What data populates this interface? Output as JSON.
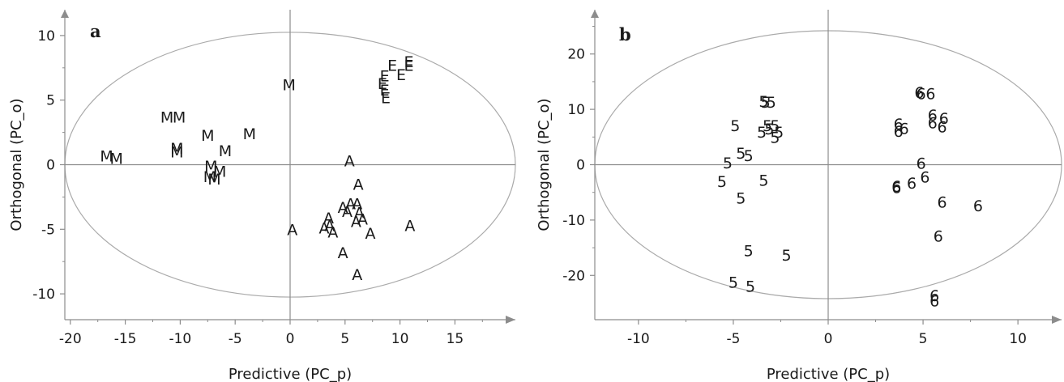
{
  "chart_data": [
    {
      "type": "scatter",
      "panel_label": "a",
      "xlabel": "Predictive (PC_p)",
      "ylabel": "Orthogonal (PC_o)",
      "xlim": [
        -20.5,
        20.5
      ],
      "ylim": [
        -12,
        12
      ],
      "xticks": [
        -20,
        -15,
        -10,
        -5,
        0,
        5,
        10,
        15
      ],
      "yticks": [
        -10,
        -5,
        0,
        5,
        10
      ],
      "grid": false,
      "zero_lines": true,
      "confidence_ellipse": {
        "rx": 20.5,
        "ry": 10.25
      },
      "colors": {
        "axis": "#8c8c8c",
        "ellipse": "#aaaaaa",
        "marks": "#1a1a1a"
      },
      "points": [
        {
          "label": "M",
          "x": -0.1,
          "y": 6.2
        },
        {
          "label": "M",
          "x": -11.2,
          "y": 3.7
        },
        {
          "label": "M",
          "x": -10.1,
          "y": 3.7
        },
        {
          "label": "M",
          "x": -7.5,
          "y": 2.3
        },
        {
          "label": "M",
          "x": -3.7,
          "y": 2.4
        },
        {
          "label": "M",
          "x": -10.3,
          "y": 1.3
        },
        {
          "label": "M",
          "x": -10.3,
          "y": 1.0
        },
        {
          "label": "M",
          "x": -5.9,
          "y": 1.1
        },
        {
          "label": "M",
          "x": -16.7,
          "y": 0.7
        },
        {
          "label": "M",
          "x": -15.8,
          "y": 0.5
        },
        {
          "label": "M",
          "x": -7.2,
          "y": -0.1
        },
        {
          "label": "M",
          "x": -6.4,
          "y": -0.5
        },
        {
          "label": "M",
          "x": -7.3,
          "y": -0.9
        },
        {
          "label": "M",
          "x": -6.9,
          "y": -1.1
        },
        {
          "label": "E",
          "x": 10.8,
          "y": 8.0
        },
        {
          "label": "E",
          "x": 10.8,
          "y": 7.7
        },
        {
          "label": "E",
          "x": 9.3,
          "y": 7.7
        },
        {
          "label": "E",
          "x": 10.1,
          "y": 7.0
        },
        {
          "label": "E",
          "x": 8.6,
          "y": 6.9
        },
        {
          "label": "E",
          "x": 8.4,
          "y": 6.3
        },
        {
          "label": "E",
          "x": 8.6,
          "y": 5.8
        },
        {
          "label": "E",
          "x": 8.7,
          "y": 5.2
        },
        {
          "label": "A",
          "x": 5.4,
          "y": 0.3
        },
        {
          "label": "A",
          "x": 6.2,
          "y": -1.5
        },
        {
          "label": "A",
          "x": 5.5,
          "y": -3.0
        },
        {
          "label": "A",
          "x": 6.1,
          "y": -3.0
        },
        {
          "label": "A",
          "x": 4.8,
          "y": -3.3
        },
        {
          "label": "A",
          "x": 5.2,
          "y": -3.6
        },
        {
          "label": "A",
          "x": 6.3,
          "y": -3.7
        },
        {
          "label": "A",
          "x": 3.5,
          "y": -4.1
        },
        {
          "label": "A",
          "x": 6.6,
          "y": -4.2
        },
        {
          "label": "A",
          "x": 6.0,
          "y": -4.4
        },
        {
          "label": "A",
          "x": 3.6,
          "y": -4.7
        },
        {
          "label": "A",
          "x": 10.9,
          "y": -4.7
        },
        {
          "label": "A",
          "x": 3.1,
          "y": -4.9
        },
        {
          "label": "A",
          "x": 0.2,
          "y": -5.0
        },
        {
          "label": "A",
          "x": 3.9,
          "y": -5.2
        },
        {
          "label": "A",
          "x": 7.3,
          "y": -5.3
        },
        {
          "label": "A",
          "x": 4.8,
          "y": -6.8
        },
        {
          "label": "A",
          "x": 6.1,
          "y": -8.5
        }
      ]
    },
    {
      "type": "scatter",
      "panel_label": "b",
      "xlabel": "Predictive (PC_p)",
      "ylabel": "Orthogonal (PC_o)",
      "xlim": [
        -12.3,
        12.3
      ],
      "ylim": [
        -28,
        28
      ],
      "xticks": [
        -10,
        -5,
        0,
        5,
        10
      ],
      "yticks": [
        -20,
        -10,
        0,
        10,
        20
      ],
      "grid": false,
      "zero_lines": true,
      "confidence_ellipse": {
        "rx": 12.3,
        "ry": 24.2
      },
      "colors": {
        "axis": "#8c8c8c",
        "ellipse": "#aaaaaa",
        "marks": "#1a1a1a"
      },
      "points": [
        {
          "label": "5",
          "x": -3.4,
          "y": 11.5
        },
        {
          "label": "5",
          "x": -3.3,
          "y": 11.3
        },
        {
          "label": "5",
          "x": -3.0,
          "y": 11.3
        },
        {
          "label": "5",
          "x": -4.9,
          "y": 7.1
        },
        {
          "label": "5",
          "x": -3.2,
          "y": 7.1
        },
        {
          "label": "5",
          "x": -2.8,
          "y": 7.1
        },
        {
          "label": "5",
          "x": -3.1,
          "y": 6.5
        },
        {
          "label": "5",
          "x": -3.5,
          "y": 5.9
        },
        {
          "label": "5",
          "x": -2.6,
          "y": 5.9
        },
        {
          "label": "5",
          "x": -2.8,
          "y": 5.0
        },
        {
          "label": "5",
          "x": -4.6,
          "y": 2.1
        },
        {
          "label": "5",
          "x": -4.2,
          "y": 1.7
        },
        {
          "label": "5",
          "x": -5.3,
          "y": 0.4
        },
        {
          "label": "5",
          "x": -5.6,
          "y": -3.0
        },
        {
          "label": "5",
          "x": -3.4,
          "y": -2.8
        },
        {
          "label": "5",
          "x": -4.6,
          "y": -6.0
        },
        {
          "label": "5",
          "x": -4.2,
          "y": -15.5
        },
        {
          "label": "5",
          "x": -2.2,
          "y": -16.3
        },
        {
          "label": "5",
          "x": -5.0,
          "y": -21.2
        },
        {
          "label": "5",
          "x": -4.1,
          "y": -21.9
        },
        {
          "label": "6",
          "x": 4.8,
          "y": 13.1
        },
        {
          "label": "6",
          "x": 4.9,
          "y": 12.9
        },
        {
          "label": "6",
          "x": 5.4,
          "y": 12.9
        },
        {
          "label": "6",
          "x": 5.5,
          "y": 9.0
        },
        {
          "label": "6",
          "x": 6.1,
          "y": 8.4
        },
        {
          "label": "6",
          "x": 3.7,
          "y": 7.4
        },
        {
          "label": "6",
          "x": 5.5,
          "y": 7.6
        },
        {
          "label": "6",
          "x": 4.0,
          "y": 6.6
        },
        {
          "label": "6",
          "x": 6.0,
          "y": 6.9
        },
        {
          "label": "6",
          "x": 3.7,
          "y": 6.1
        },
        {
          "label": "6",
          "x": 4.9,
          "y": 0.3
        },
        {
          "label": "6",
          "x": 5.1,
          "y": -2.2
        },
        {
          "label": "6",
          "x": 4.4,
          "y": -3.3
        },
        {
          "label": "6",
          "x": 3.6,
          "y": -3.9
        },
        {
          "label": "6",
          "x": 3.6,
          "y": -4.1
        },
        {
          "label": "6",
          "x": 6.0,
          "y": -6.7
        },
        {
          "label": "6",
          "x": 7.9,
          "y": -7.4
        },
        {
          "label": "6",
          "x": 5.8,
          "y": -12.9
        },
        {
          "label": "6",
          "x": 5.6,
          "y": -23.6
        },
        {
          "label": "6",
          "x": 5.6,
          "y": -24.6
        }
      ]
    }
  ]
}
